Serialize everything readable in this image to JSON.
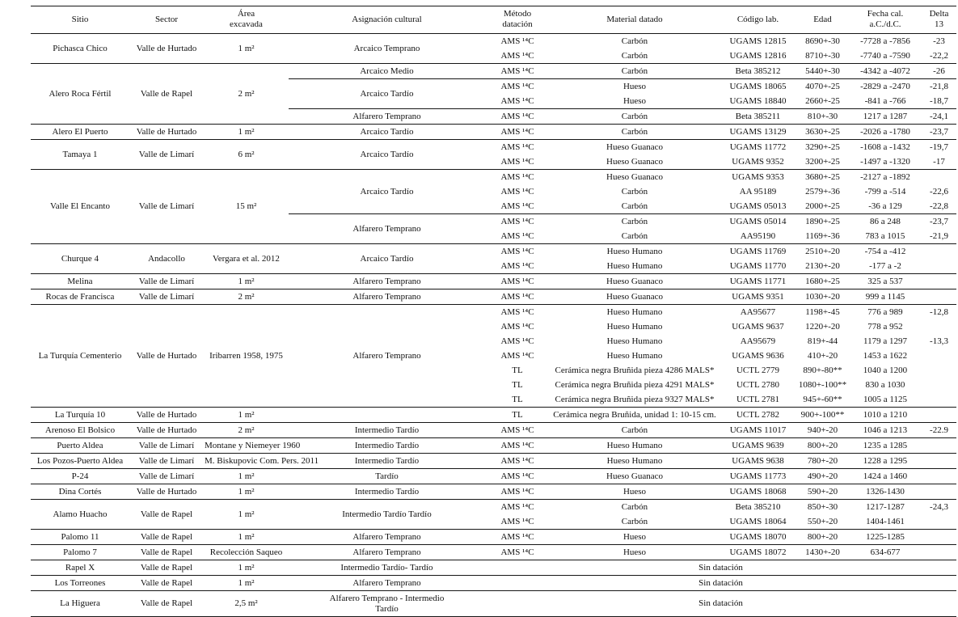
{
  "header": {
    "columns": [
      "Sitio",
      "Sector",
      "Área\nexcavada",
      "Asignación cultural",
      "Método\ndatación",
      "Material datado",
      "Código lab.",
      "Edad",
      "Fecha cal.\na.C./d.C.",
      "Delta\n13"
    ]
  },
  "sites": [
    {
      "sitio": "Pichasca Chico",
      "sector": "Valle de Hurtado",
      "area": "1 m²",
      "groups": [
        {
          "asignacion": "Arcaico Temprano",
          "rows": [
            {
              "metodo": "AMS ¹⁴C",
              "material": "Carbón",
              "codigo": "UGAMS 12815",
              "edad": "8690+-30",
              "fecha": "-7728 a -7856",
              "delta": "-23"
            },
            {
              "metodo": "AMS ¹⁴C",
              "material": "Carbón",
              "codigo": "UGAMS 12816",
              "edad": "8710+-30",
              "fecha": "-7740 a -7590",
              "delta": "-22,2"
            }
          ]
        }
      ]
    },
    {
      "sitio": "Alero Roca Fértil",
      "sector": "Valle de Rapel",
      "area": "2 m²",
      "groups": [
        {
          "asignacion": "Arcaico Medio",
          "rows": [
            {
              "metodo": "AMS ¹⁴C",
              "material": "Carbón",
              "codigo": "Beta 385212",
              "edad": "5440+-30",
              "fecha": "-4342 a -4072",
              "delta": "-26"
            }
          ]
        },
        {
          "asignacion": "Arcaico Tardío",
          "rows": [
            {
              "metodo": "AMS ¹⁴C",
              "material": "Hueso",
              "codigo": "UGAMS 18065",
              "edad": "4070+-25",
              "fecha": "-2829 a -2470",
              "delta": "-21,8"
            },
            {
              "metodo": "AMS ¹⁴C",
              "material": "Hueso",
              "codigo": "UGAMS 18840",
              "edad": "2660+-25",
              "fecha": "-841 a -766",
              "delta": "-18,7"
            }
          ]
        },
        {
          "asignacion": "Alfarero Temprano",
          "rows": [
            {
              "metodo": "AMS ¹⁴C",
              "material": "Carbón",
              "codigo": "Beta 385211",
              "edad": "810+-30",
              "fecha": "1217 a 1287",
              "delta": "-24,1"
            }
          ]
        }
      ]
    },
    {
      "sitio": "Alero El Puerto",
      "sector": "Valle de Hurtado",
      "area": "1 m²",
      "groups": [
        {
          "asignacion": "Arcaico Tardío",
          "rows": [
            {
              "metodo": "AMS ¹⁴C",
              "material": "Carbón",
              "codigo": "UGAMS 13129",
              "edad": "3630+-25",
              "fecha": "-2026 a -1780",
              "delta": "-23,7"
            }
          ]
        }
      ]
    },
    {
      "sitio": "Tamaya 1",
      "sector": "Valle de Limarí",
      "area": "6 m²",
      "groups": [
        {
          "asignacion": "Arcaico Tardío",
          "rows": [
            {
              "metodo": "AMS ¹⁴C",
              "material": "Hueso Guanaco",
              "codigo": "UGAMS 11772",
              "edad": "3290+-25",
              "fecha": "-1608 a -1432",
              "delta": "-19,7"
            },
            {
              "metodo": "AMS ¹⁴C",
              "material": "Hueso Guanaco",
              "codigo": "UGAMS 9352",
              "edad": "3200+-25",
              "fecha": "-1497 a -1320",
              "delta": "-17"
            }
          ]
        }
      ]
    },
    {
      "sitio": "Valle El Encanto",
      "sector": "Valle de Limarí",
      "area": "15 m²",
      "groups": [
        {
          "asignacion": "Arcaico Tardío",
          "rows": [
            {
              "metodo": "AMS ¹⁴C",
              "material": "Hueso Guanaco",
              "codigo": "UGAMS 9353",
              "edad": "3680+-25",
              "fecha": "-2127 a -1892",
              "delta": ""
            },
            {
              "metodo": "AMS ¹⁴C",
              "material": "Carbón",
              "codigo": "AA 95189",
              "edad": "2579+-36",
              "fecha": "-799 a -514",
              "delta": "-22,6"
            },
            {
              "metodo": "AMS ¹⁴C",
              "material": "Carbón",
              "codigo": "UGAMS 05013",
              "edad": "2000+-25",
              "fecha": "-36 a 129",
              "delta": "-22,8"
            }
          ]
        },
        {
          "asignacion": "Alfarero Temprano",
          "rows": [
            {
              "metodo": "AMS ¹⁴C",
              "material": "Carbón",
              "codigo": "UGAMS 05014",
              "edad": "1890+-25",
              "fecha": "86 a 248",
              "delta": "-23,7"
            },
            {
              "metodo": "AMS ¹⁴C",
              "material": "Carbón",
              "codigo": "AA95190",
              "edad": "1169+-36",
              "fecha": "783 a 1015",
              "delta": "-21,9"
            }
          ]
        }
      ]
    },
    {
      "sitio": "Churque 4",
      "sector": "Andacollo",
      "area": "Vergara et al. 2012",
      "groups": [
        {
          "asignacion": "Arcaico Tardío",
          "rows": [
            {
              "metodo": "AMS ¹⁴C",
              "material": "Hueso Humano",
              "codigo": "UGAMS 11769",
              "edad": "2510+-20",
              "fecha": "-754 a -412",
              "delta": ""
            },
            {
              "metodo": "AMS ¹⁴C",
              "material": "Hueso Humano",
              "codigo": "UGAMS 11770",
              "edad": "2130+-20",
              "fecha": "-177 a -2",
              "delta": ""
            }
          ]
        }
      ]
    },
    {
      "sitio": "Melina",
      "sector": "Valle de Limarí",
      "area": "1 m²",
      "groups": [
        {
          "asignacion": "Alfarero Temprano",
          "rows": [
            {
              "metodo": "AMS ¹⁴C",
              "material": "Hueso Guanaco",
              "codigo": "UGAMS 11771",
              "edad": "1680+-25",
              "fecha": "325 a 537",
              "delta": ""
            }
          ]
        }
      ]
    },
    {
      "sitio": "Rocas de Francisca",
      "sector": "Valle de Limarí",
      "area": "2 m²",
      "groups": [
        {
          "asignacion": "Alfarero Temprano",
          "rows": [
            {
              "metodo": "AMS ¹⁴C",
              "material": "Hueso Guanaco",
              "codigo": "UGAMS 9351",
              "edad": "1030+-20",
              "fecha": "999 a 1145",
              "delta": ""
            }
          ]
        }
      ]
    },
    {
      "sitio": "La Turquía Cementerio",
      "sector": "Valle de Hurtado",
      "area": "Iribarren 1958, 1975",
      "groups": [
        {
          "asignacion": "Alfarero Temprano",
          "rows": [
            {
              "metodo": "AMS ¹⁴C",
              "material": "Hueso Humano",
              "codigo": "AA95677",
              "edad": "1198+-45",
              "fecha": "776 a 989",
              "delta": "-12,8"
            },
            {
              "metodo": "AMS ¹⁴C",
              "material": "Hueso Humano",
              "codigo": "UGAMS 9637",
              "edad": "1220+-20",
              "fecha": "778 a 952",
              "delta": ""
            },
            {
              "metodo": "AMS ¹⁴C",
              "material": "Hueso Humano",
              "codigo": "AA95679",
              "edad": "819+-44",
              "fecha": "1179 a 1297",
              "delta": "-13,3"
            },
            {
              "metodo": "AMS ¹⁴C",
              "material": "Hueso Humano",
              "codigo": "UGAMS 9636",
              "edad": "410+-20",
              "fecha": "1453 a 1622",
              "delta": ""
            },
            {
              "metodo": "TL",
              "material": "Cerámica negra Bruñida pieza 4286 MALS*",
              "codigo": "UCTL 2779",
              "edad": "890+-80**",
              "fecha": "1040 a 1200",
              "delta": ""
            },
            {
              "metodo": "TL",
              "material": "Cerámica negra Bruñida pieza 4291 MALS*",
              "codigo": "UCTL 2780",
              "edad": "1080+-100**",
              "fecha": "830 a 1030",
              "delta": ""
            },
            {
              "metodo": "TL",
              "material": "Cerámica negra Bruñida pieza 9327 MALS*",
              "codigo": "UCTL 2781",
              "edad": "945+-60**",
              "fecha": "1005 a 1125",
              "delta": ""
            }
          ]
        }
      ]
    },
    {
      "sitio": "La Turquía 10",
      "sector": "Valle de Hurtado",
      "area": "1 m²",
      "groups": [
        {
          "asignacion": "",
          "rows": [
            {
              "metodo": "TL",
              "material": "Cerámica negra Bruñida, unidad 1: 10-15 cm.",
              "codigo": "UCTL 2782",
              "edad": "900+-100**",
              "fecha": "1010 a 1210",
              "delta": ""
            }
          ]
        }
      ]
    },
    {
      "sitio": "Arenoso El Bolsico",
      "sector": "Valle de Hurtado",
      "area": "2 m²",
      "groups": [
        {
          "asignacion": "Intermedio Tardío",
          "rows": [
            {
              "metodo": "AMS ¹⁴C",
              "material": "Carbón",
              "codigo": "UGAMS 11017",
              "edad": "940+-20",
              "fecha": "1046 a 1213",
              "delta": "-22.9"
            }
          ]
        }
      ]
    },
    {
      "sitio": "Puerto Aldea",
      "sector": "Valle de Limarí",
      "area": "Montane y Niemeyer 1960",
      "groups": [
        {
          "asignacion": "Intermedio Tardío",
          "rows": [
            {
              "metodo": "AMS ¹⁴C",
              "material": "Hueso Humano",
              "codigo": "UGAMS 9639",
              "edad": "800+-20",
              "fecha": "1235 a 1285",
              "delta": ""
            }
          ]
        }
      ]
    },
    {
      "sitio": "Los Pozos-Puerto Aldea",
      "sector": "Valle de Limarí",
      "area": "M. Biskupovic Com. Pers. 2011",
      "groups": [
        {
          "asignacion": "Intermedio Tardío",
          "rows": [
            {
              "metodo": "AMS ¹⁴C",
              "material": "Hueso Humano",
              "codigo": "UGAMS 9638",
              "edad": "780+-20",
              "fecha": "1228 a 1295",
              "delta": ""
            }
          ]
        }
      ]
    },
    {
      "sitio": "P-24",
      "sector": "Valle de Limarí",
      "area": "1 m²",
      "groups": [
        {
          "asignacion": "Tardío",
          "rows": [
            {
              "metodo": "AMS ¹⁴C",
              "material": "Hueso Guanaco",
              "codigo": "UGAMS 11773",
              "edad": "490+-20",
              "fecha": "1424 a 1460",
              "delta": ""
            }
          ]
        }
      ]
    },
    {
      "sitio": "Dina Cortés",
      "sector": "Valle de Hurtado",
      "area": "1 m²",
      "groups": [
        {
          "asignacion": "Intermedio Tardío",
          "rows": [
            {
              "metodo": "AMS ¹⁴C",
              "material": "Hueso",
              "codigo": "UGAMS 18068",
              "edad": "590+-20",
              "fecha": "1326-1430",
              "delta": ""
            }
          ]
        }
      ]
    },
    {
      "sitio": "Alamo Huacho",
      "sector": "Valle de Rapel",
      "area": "1 m²",
      "groups": [
        {
          "asignacion": "Intermedio Tardío Tardío",
          "rows": [
            {
              "metodo": "AMS ¹⁴C",
              "material": "Carbón",
              "codigo": "Beta 385210",
              "edad": "850+-30",
              "fecha": "1217-1287",
              "delta": "-24,3"
            },
            {
              "metodo": "AMS ¹⁴C",
              "material": "Carbón",
              "codigo": "UGAMS 18064",
              "edad": "550+-20",
              "fecha": "1404-1461",
              "delta": ""
            }
          ]
        }
      ]
    },
    {
      "sitio": "Palomo 11",
      "sector": "Valle de Rapel",
      "area": "1 m²",
      "groups": [
        {
          "asignacion": "Alfarero Temprano",
          "rows": [
            {
              "metodo": "AMS ¹⁴C",
              "material": "Hueso",
              "codigo": "UGAMS 18070",
              "edad": "800+-20",
              "fecha": "1225-1285",
              "delta": ""
            }
          ]
        }
      ]
    },
    {
      "sitio": "Palomo 7",
      "sector": "Valle de Rapel",
      "area": "Recolección Saqueo",
      "groups": [
        {
          "asignacion": "Alfarero Temprano",
          "rows": [
            {
              "metodo": "AMS ¹⁴C",
              "material": "Hueso",
              "codigo": "UGAMS 18072",
              "edad": "1430+-20",
              "fecha": "634-677",
              "delta": ""
            }
          ]
        }
      ]
    },
    {
      "sitio": "Rapel X",
      "sector": "Valle de Rapel",
      "area": "1 m²",
      "asignacion": "Intermedio Tardío- Tardío",
      "no_dating": "Sin datación"
    },
    {
      "sitio": "Los Torreones",
      "sector": "Valle de Rapel",
      "area": "1 m²",
      "asignacion": "Alfarero Temprano",
      "no_dating": "Sin datación"
    },
    {
      "sitio": "La Higuera",
      "sector": "Valle de Rapel",
      "area": "2,5 m²",
      "asignacion": "Alfarero Temprano - Intermedio\nTardío",
      "no_dating": "Sin datación"
    }
  ]
}
